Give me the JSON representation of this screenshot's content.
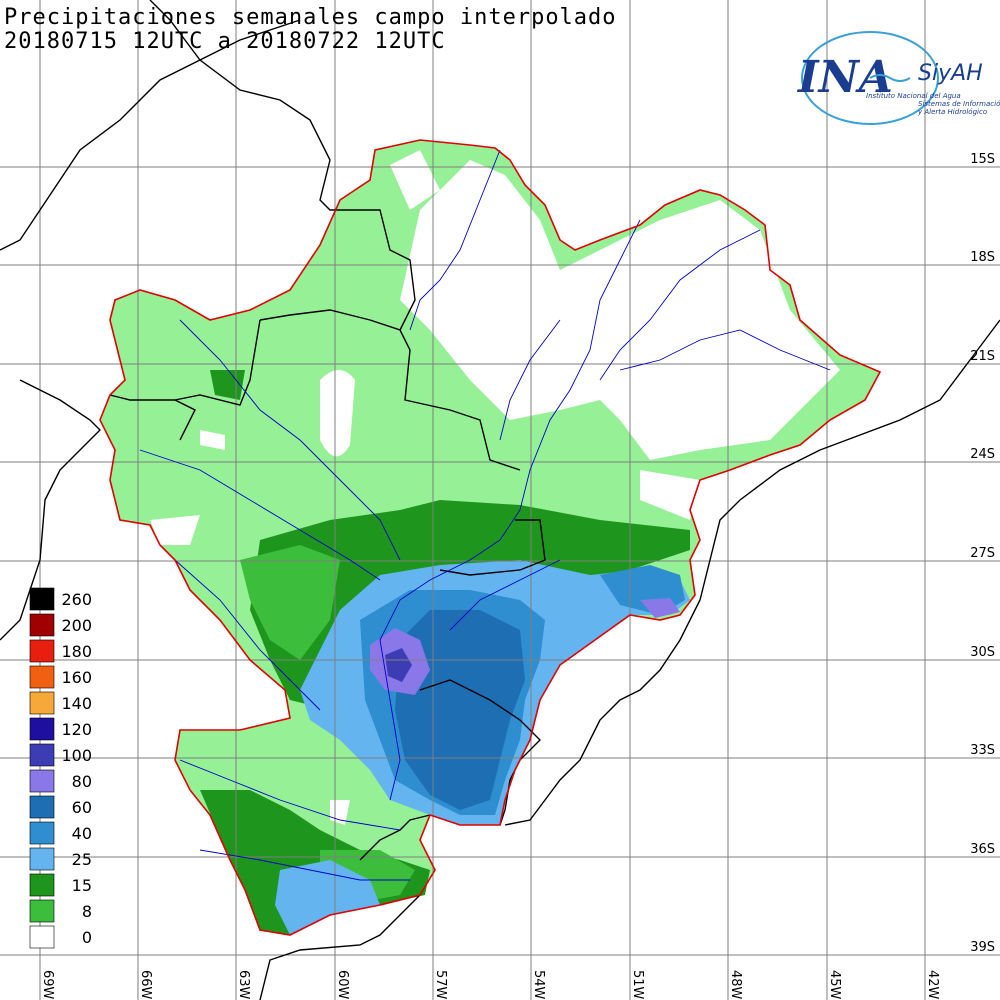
{
  "title_line1": "Precipitaciones semanales campo interpolado",
  "title_line2": "20180715 12UTC a 20180722 12UTC",
  "logo": {
    "ina": "INA",
    "siyah": "SiyAH",
    "line1": "Instituto Nacional del Agua",
    "line2": "Sistemas de Información",
    "line3": "y Alerta Hidrológico"
  },
  "lat_labels": [
    "15S",
    "18S",
    "21S",
    "24S",
    "27S",
    "30S",
    "33S",
    "36S",
    "39S"
  ],
  "lon_labels": [
    "69W",
    "66W",
    "63W",
    "60W",
    "57W",
    "54W",
    "51W",
    "48W",
    "45W",
    "42W"
  ],
  "legend": [
    {
      "label": "260",
      "color": "#000000"
    },
    {
      "label": "200",
      "color": "#a00000"
    },
    {
      "label": "180",
      "color": "#e81e0e"
    },
    {
      "label": "160",
      "color": "#f06010"
    },
    {
      "label": "140",
      "color": "#f6a938"
    },
    {
      "label": "120",
      "color": "#1e0fa0"
    },
    {
      "label": "100",
      "color": "#3c3cb4"
    },
    {
      "label": "80",
      "color": "#8a78e8"
    },
    {
      "label": "60",
      "color": "#1e6eb4"
    },
    {
      "label": "40",
      "color": "#2e8ed0"
    },
    {
      "label": "25",
      "color": "#64b4f0"
    },
    {
      "label": "15",
      "color": "#1e961e"
    },
    {
      "label": "8",
      "color": "#3cbe3c"
    },
    {
      "label": "0",
      "color": "#ffffff"
    }
  ],
  "colors": {
    "basin_outline": "#e00000",
    "rivers": "#0000c8",
    "borders": "#000000",
    "grid": "#7f7f7f",
    "light_green": "#96f096"
  }
}
